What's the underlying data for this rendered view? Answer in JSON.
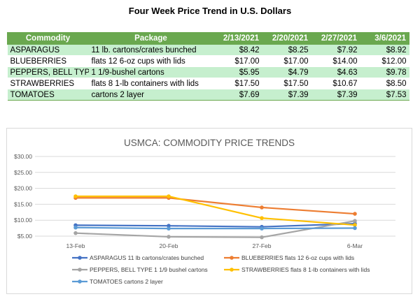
{
  "page": {
    "title": "Four Week Price Trend in U.S. Dollars"
  },
  "table": {
    "headers": [
      "Commodity",
      "Package",
      "2/13/2021",
      "2/20/2021",
      "2/27/2021",
      "3/6/2021"
    ],
    "rows": [
      {
        "commodity": "ASPARAGUS",
        "package": "11 lb. cartons/crates bunched",
        "prices": [
          "$8.42",
          "$8.25",
          "$7.92",
          "$8.92"
        ]
      },
      {
        "commodity": "BLUEBERRIES",
        "package": "flats 12 6-oz cups with lids",
        "prices": [
          "$17.00",
          "$17.00",
          "$14.00",
          "$12.00"
        ]
      },
      {
        "commodity": "PEPPERS, BELL TYPE",
        "package": "1 1/9-bushel cartons",
        "prices": [
          "$5.95",
          "$4.79",
          "$4.63",
          "$9.78"
        ]
      },
      {
        "commodity": "STRAWBERRIES",
        "package": "flats 8 1-lb containers with lids",
        "prices": [
          "$17.50",
          "$17.50",
          "$10.67",
          "$8.50"
        ]
      },
      {
        "commodity": "TOMATOES",
        "package": "cartons 2 layer",
        "prices": [
          "$7.69",
          "$7.39",
          "$7.39",
          "$7.53"
        ]
      }
    ]
  },
  "chart_data": {
    "type": "line",
    "title": "USMCA: COMMODITY PRICE TRENDS",
    "categories": [
      "13-Feb",
      "20-Feb",
      "27-Feb",
      "6-Mar"
    ],
    "y_ticks": [
      "$5.00",
      "$10.00",
      "$15.00",
      "$20.00",
      "$25.00",
      "$30.00"
    ],
    "ylim": [
      5,
      30
    ],
    "grid": true,
    "legend_position": "bottom",
    "series": [
      {
        "name": "ASPARAGUS 11 lb cartons/crates bunched",
        "color": "#4472c4",
        "values": [
          8.42,
          8.25,
          7.92,
          8.92
        ]
      },
      {
        "name": "BLUEBERRIES flats 12 6-oz cups with lids",
        "color": "#ed7d31",
        "values": [
          17.0,
          17.0,
          14.0,
          12.0
        ]
      },
      {
        "name": "PEPPERS, BELL TYPE 1 1/9 bushel cartons",
        "color": "#a5a5a5",
        "values": [
          5.95,
          4.79,
          4.63,
          9.78
        ]
      },
      {
        "name": "STRAWBERRIES flats 8 1-lb containers with lids",
        "color": "#ffc000",
        "values": [
          17.5,
          17.5,
          10.67,
          8.5
        ]
      },
      {
        "name": "TOMATOES cartons 2 layer",
        "color": "#5b9bd5",
        "values": [
          7.69,
          7.39,
          7.39,
          7.53
        ]
      }
    ]
  }
}
